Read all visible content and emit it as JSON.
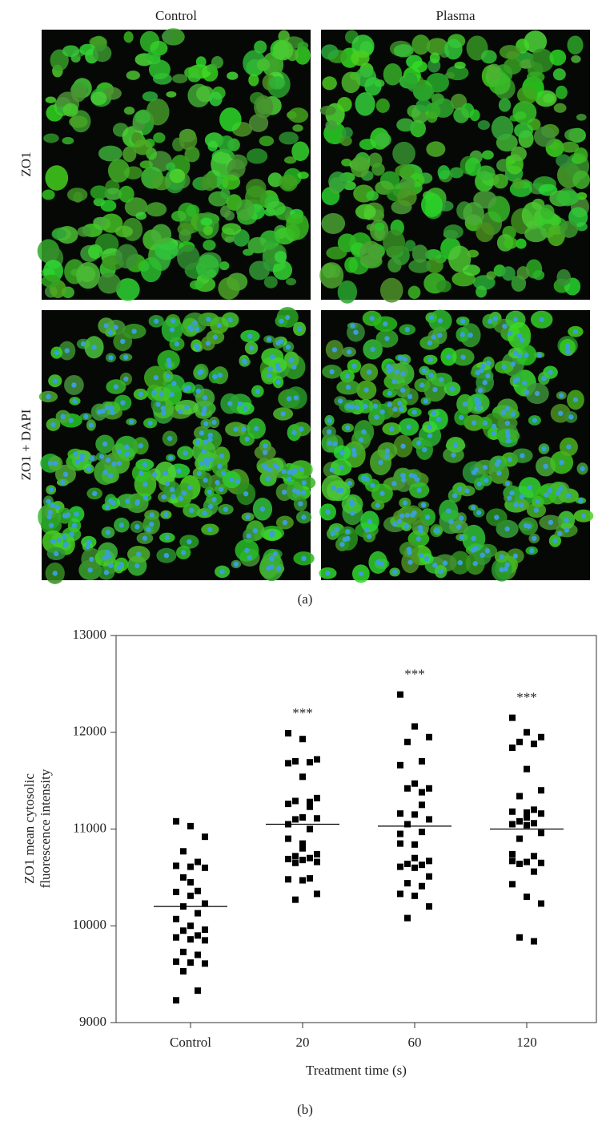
{
  "panel_a": {
    "columns": [
      "Control",
      "Plasma"
    ],
    "rows": [
      "ZO1",
      "ZO1 + DAPI"
    ],
    "label": "(a)"
  },
  "chart_data": {
    "type": "scatter",
    "panel_label": "(b)",
    "ylabel": [
      "ZO1 mean cytosolic",
      "fluorescence intensity"
    ],
    "xlabel": "Treatment time (s)",
    "categories": [
      "Control",
      "20",
      "60",
      "120"
    ],
    "ylim": [
      9000,
      13000
    ],
    "yticks": [
      9000,
      10000,
      11000,
      12000,
      13000
    ],
    "color": "#000000",
    "series": [
      {
        "name": "Control",
        "values": [
          11080,
          11030,
          10920,
          10770,
          10660,
          10620,
          10610,
          10600,
          10500,
          10360,
          10350,
          10310,
          10230,
          10200,
          10130,
          10070,
          10000,
          9960,
          9950,
          9900,
          9880,
          9860,
          9850,
          9730,
          9700,
          9630,
          9620,
          9610,
          9530,
          9330,
          9230,
          10450
        ]
      },
      {
        "name": "20",
        "values": [
          11990,
          11930,
          11720,
          11700,
          11690,
          11680,
          11540,
          11320,
          11290,
          11280,
          11260,
          11120,
          11110,
          11100,
          11000,
          10900,
          10800,
          10740,
          10720,
          10700,
          10690,
          10680,
          10660,
          10650,
          10490,
          10480,
          10470,
          10330,
          10270,
          11230,
          11050,
          10850
        ]
      },
      {
        "name": "60",
        "values": [
          12390,
          12060,
          11950,
          11900,
          11700,
          11660,
          11470,
          11420,
          11420,
          11250,
          11160,
          11150,
          11100,
          11050,
          10970,
          10850,
          10840,
          10670,
          10640,
          10630,
          10610,
          10600,
          10510,
          10440,
          10410,
          10330,
          10310,
          10200,
          10080,
          11380,
          10950,
          10700
        ]
      },
      {
        "name": "120",
        "values": [
          12150,
          12000,
          11950,
          11900,
          11880,
          11840,
          11620,
          11400,
          11340,
          11200,
          11180,
          11170,
          11160,
          11080,
          11060,
          11050,
          11040,
          10960,
          10900,
          10720,
          10670,
          10660,
          10650,
          10640,
          10560,
          10430,
          10300,
          10230,
          9880,
          9840,
          10740,
          11120
        ]
      }
    ],
    "means": [
      10200,
      11050,
      11030,
      11000
    ],
    "annotations": [
      null,
      "***",
      "***",
      "***"
    ]
  }
}
